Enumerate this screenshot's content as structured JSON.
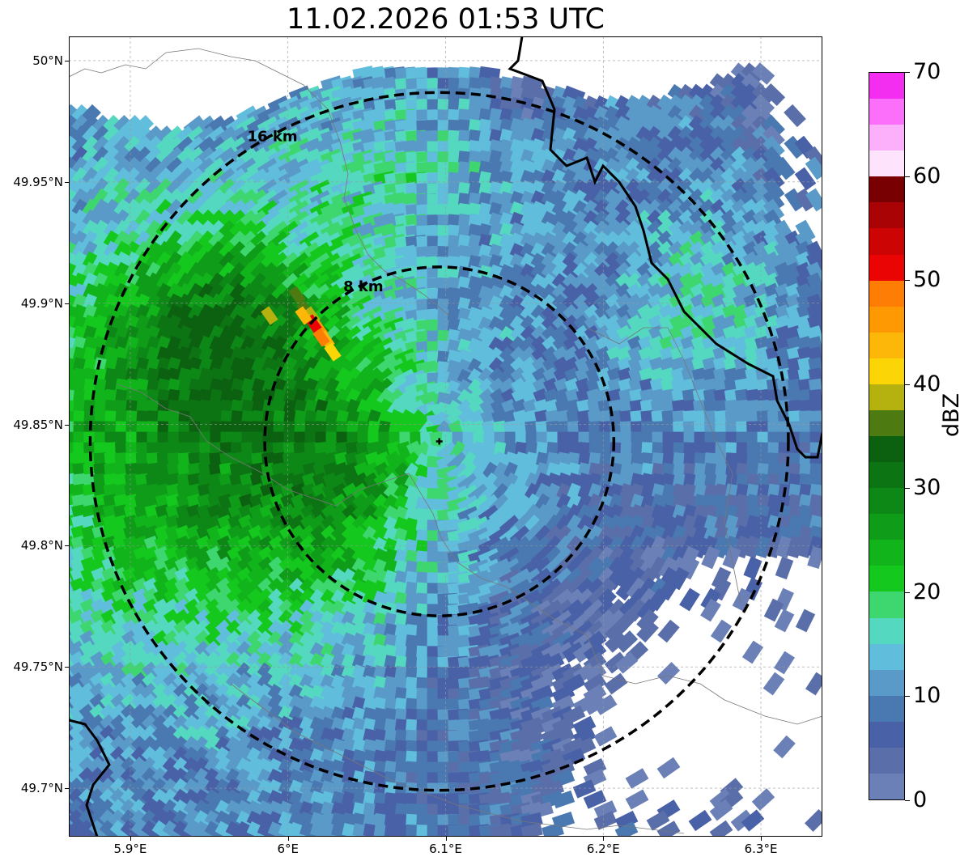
{
  "title": "11.02.2026 01:53 UTC",
  "map": {
    "lon_range": [
      5.861,
      6.339
    ],
    "lat_range": [
      49.68,
      50.01
    ],
    "lat_ticks": [
      "50°N",
      "49.95°N",
      "49.9°N",
      "49.85°N",
      "49.8°N",
      "49.75°N",
      "49.7°N"
    ],
    "lon_ticks": [
      "5.9°E",
      "6°E",
      "6.1°E",
      "6.2°E",
      "6.3°E"
    ],
    "radar_site": {
      "lon": 6.096,
      "lat": 49.843
    },
    "range_rings": [
      {
        "label": "8 km",
        "radius_km": 8
      },
      {
        "label": "16 km",
        "radius_km": 16
      }
    ],
    "grid": true
  },
  "colorbar": {
    "unit": "dBZ",
    "min": 0,
    "max": 70,
    "tick_labels": [
      "70",
      "60",
      "50",
      "40",
      "30",
      "20",
      "10",
      "0"
    ],
    "colors": [
      "#6a80b6",
      "#5a6fa9",
      "#4961a6",
      "#4a78b0",
      "#5a9ac9",
      "#61bddc",
      "#55d8c0",
      "#3ed66f",
      "#14c81e",
      "#12b41c",
      "#0f9c19",
      "#0d8816",
      "#0d7414",
      "#0b6110",
      "#4d7a11",
      "#b5b20f",
      "#fcd507",
      "#fdb708",
      "#fe9904",
      "#fe7d05",
      "#ea0404",
      "#cc0404",
      "#a90305",
      "#780003",
      "#fde3fb",
      "#fcb0fb",
      "#fc6ffb",
      "#f32ef0"
    ]
  }
}
